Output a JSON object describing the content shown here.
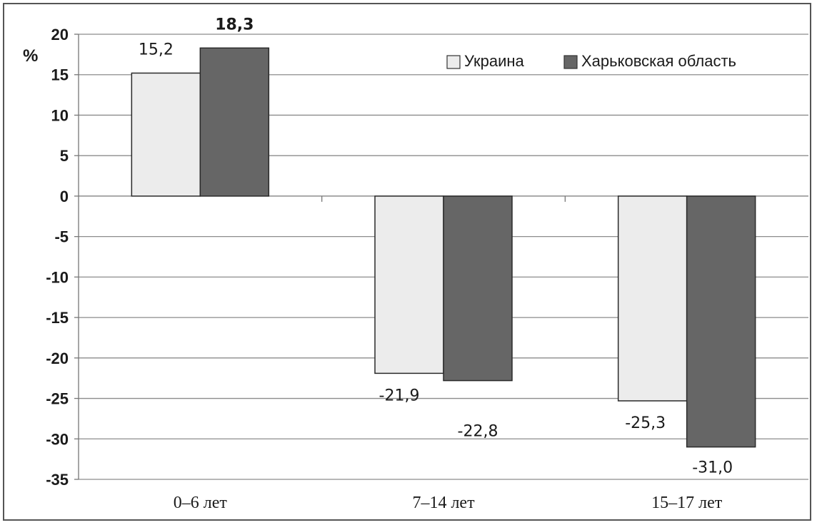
{
  "chart_data": {
    "type": "bar",
    "unit_label": "%",
    "categories": [
      "0–6 лет",
      "7–14 лет",
      "15–17 лет"
    ],
    "series": [
      {
        "name": "Украина",
        "values": [
          15.2,
          -21.9,
          -25.3
        ],
        "labels": [
          "15,2",
          "-21,9",
          "-25,3"
        ],
        "color": "#ececec"
      },
      {
        "name": "Харьковская область",
        "values": [
          18.3,
          -22.8,
          -31.0
        ],
        "labels": [
          "18,3",
          "-22,8",
          "-31,0"
        ],
        "color": "#666666"
      }
    ],
    "ylim": [
      -35,
      20
    ],
    "yticks": [
      20,
      15,
      10,
      5,
      0,
      -5,
      -10,
      -15,
      -20,
      -25,
      -30,
      -35
    ],
    "grid": true,
    "legend": "top-right"
  }
}
